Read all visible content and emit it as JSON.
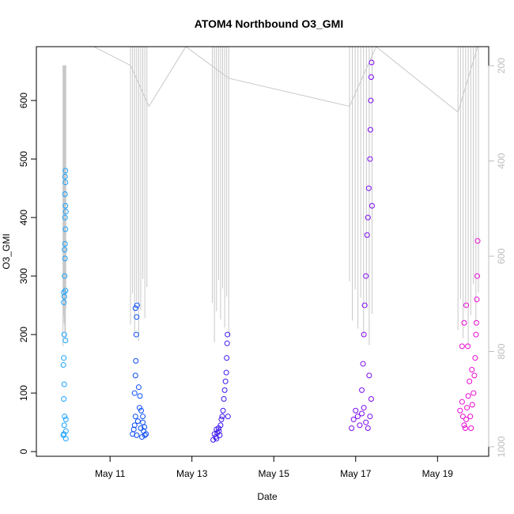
{
  "chart_data": {
    "type": "scatter",
    "title": "ATOM4 Northbound O3_GMI",
    "xlabel": "Date",
    "ylabel": "O3_GMI",
    "right_axis_label": "",
    "x_ticks": [
      "May 11",
      "May 13",
      "May 15",
      "May 17",
      "May 19"
    ],
    "x_tick_days": [
      11,
      13,
      15,
      17,
      19
    ],
    "xlim_days": [
      9.2,
      20.25
    ],
    "y_ticks": [
      0,
      100,
      200,
      300,
      400,
      500,
      600
    ],
    "ylim": [
      -8,
      692
    ],
    "y2_ticks": [
      200,
      400,
      600,
      800,
      1000
    ],
    "y2lim": [
      1020,
      160
    ],
    "y2_reversed": true,
    "grid": false,
    "legend": "none",
    "series": [
      {
        "color": "#19a2ff",
        "day_range": [
          9.85,
          9.92
        ],
        "points": [
          [
            9.87,
            30
          ],
          [
            9.88,
            45
          ],
          [
            9.86,
            28
          ],
          [
            9.89,
            60
          ],
          [
            9.87,
            90
          ],
          [
            9.88,
            115
          ],
          [
            9.86,
            148
          ],
          [
            9.87,
            160
          ],
          [
            9.88,
            200
          ],
          [
            9.87,
            255
          ],
          [
            9.88,
            265
          ],
          [
            9.87,
            272
          ],
          [
            9.89,
            300
          ],
          [
            9.9,
            330
          ],
          [
            9.89,
            345
          ],
          [
            9.9,
            355
          ],
          [
            9.91,
            380
          ],
          [
            9.9,
            400
          ],
          [
            9.91,
            420
          ],
          [
            9.9,
            440
          ],
          [
            9.91,
            460
          ],
          [
            9.9,
            470
          ],
          [
            9.91,
            480
          ],
          [
            9.92,
            55
          ],
          [
            9.92,
            35
          ],
          [
            9.92,
            22
          ],
          [
            9.91,
            190
          ],
          [
            9.91,
            275
          ],
          [
            9.92,
            410
          ]
        ],
        "profile_top": 660
      },
      {
        "color": "#0a4cf5",
        "day_range": [
          11.5,
          11.9
        ],
        "points": [
          [
            11.55,
            30
          ],
          [
            11.6,
            45
          ],
          [
            11.62,
            60
          ],
          [
            11.58,
            38
          ],
          [
            11.65,
            28
          ],
          [
            11.68,
            52
          ],
          [
            11.72,
            75
          ],
          [
            11.75,
            40
          ],
          [
            11.78,
            25
          ],
          [
            11.8,
            60
          ],
          [
            11.82,
            35
          ],
          [
            11.85,
            28
          ],
          [
            11.6,
            100
          ],
          [
            11.62,
            130
          ],
          [
            11.63,
            155
          ],
          [
            11.64,
            200
          ],
          [
            11.65,
            230
          ],
          [
            11.66,
            250
          ],
          [
            11.7,
            110
          ],
          [
            11.73,
            95
          ],
          [
            11.76,
            70
          ],
          [
            11.8,
            50
          ],
          [
            11.84,
            42
          ],
          [
            11.88,
            30
          ],
          [
            11.62,
            245
          ]
        ],
        "profile_top": 692
      },
      {
        "color": "#3c15f0",
        "day_range": [
          13.5,
          13.9
        ],
        "points": [
          [
            13.52,
            20
          ],
          [
            13.55,
            30
          ],
          [
            13.58,
            25
          ],
          [
            13.6,
            38
          ],
          [
            13.62,
            32
          ],
          [
            13.65,
            40
          ],
          [
            13.68,
            28
          ],
          [
            13.7,
            45
          ],
          [
            13.72,
            55
          ],
          [
            13.74,
            60
          ],
          [
            13.76,
            70
          ],
          [
            13.78,
            90
          ],
          [
            13.8,
            105
          ],
          [
            13.82,
            120
          ],
          [
            13.84,
            135
          ],
          [
            13.85,
            160
          ],
          [
            13.86,
            185
          ],
          [
            13.87,
            200
          ],
          [
            13.88,
            60
          ],
          [
            13.6,
            22
          ],
          [
            13.66,
            35
          ]
        ],
        "profile_top": 692
      },
      {
        "color": "#7a0af0",
        "day_range": [
          16.85,
          17.4
        ],
        "points": [
          [
            16.9,
            40
          ],
          [
            16.95,
            55
          ],
          [
            17.0,
            70
          ],
          [
            17.05,
            60
          ],
          [
            17.1,
            45
          ],
          [
            17.15,
            65
          ],
          [
            17.2,
            75
          ],
          [
            17.25,
            50
          ],
          [
            17.3,
            40
          ],
          [
            17.35,
            60
          ],
          [
            17.38,
            90
          ],
          [
            17.15,
            105
          ],
          [
            17.18,
            150
          ],
          [
            17.2,
            200
          ],
          [
            17.22,
            250
          ],
          [
            17.25,
            300
          ],
          [
            17.28,
            370
          ],
          [
            17.3,
            400
          ],
          [
            17.32,
            450
          ],
          [
            17.35,
            500
          ],
          [
            17.36,
            550
          ],
          [
            17.37,
            600
          ],
          [
            17.38,
            640
          ],
          [
            17.39,
            665
          ],
          [
            17.33,
            130
          ],
          [
            17.4,
            420
          ]
        ],
        "profile_top": 692
      },
      {
        "color": "#e80ad2",
        "day_range": [
          19.5,
          20.0
        ],
        "points": [
          [
            19.55,
            70
          ],
          [
            19.6,
            85
          ],
          [
            19.62,
            60
          ],
          [
            19.65,
            45
          ],
          [
            19.68,
            40
          ],
          [
            19.7,
            55
          ],
          [
            19.72,
            75
          ],
          [
            19.75,
            95
          ],
          [
            19.78,
            120
          ],
          [
            19.8,
            60
          ],
          [
            19.82,
            40
          ],
          [
            19.85,
            80
          ],
          [
            19.88,
            100
          ],
          [
            19.9,
            130
          ],
          [
            19.92,
            160
          ],
          [
            19.94,
            200
          ],
          [
            19.95,
            220
          ],
          [
            19.96,
            260
          ],
          [
            19.97,
            300
          ],
          [
            19.98,
            360
          ],
          [
            19.6,
            180
          ],
          [
            19.65,
            220
          ],
          [
            19.7,
            250
          ],
          [
            19.74,
            180
          ],
          [
            19.84,
            140
          ]
        ],
        "profile_top": 692
      }
    ],
    "profile_color": "#c8c8c8",
    "flight_track": [
      [
        9.9,
        692
      ],
      [
        10.6,
        692
      ],
      [
        11.5,
        660
      ],
      [
        11.95,
        590
      ],
      [
        12.85,
        692
      ],
      [
        13.9,
        638
      ],
      [
        16.85,
        590
      ],
      [
        17.5,
        692
      ],
      [
        19.5,
        580
      ],
      [
        19.98,
        692
      ]
    ]
  }
}
